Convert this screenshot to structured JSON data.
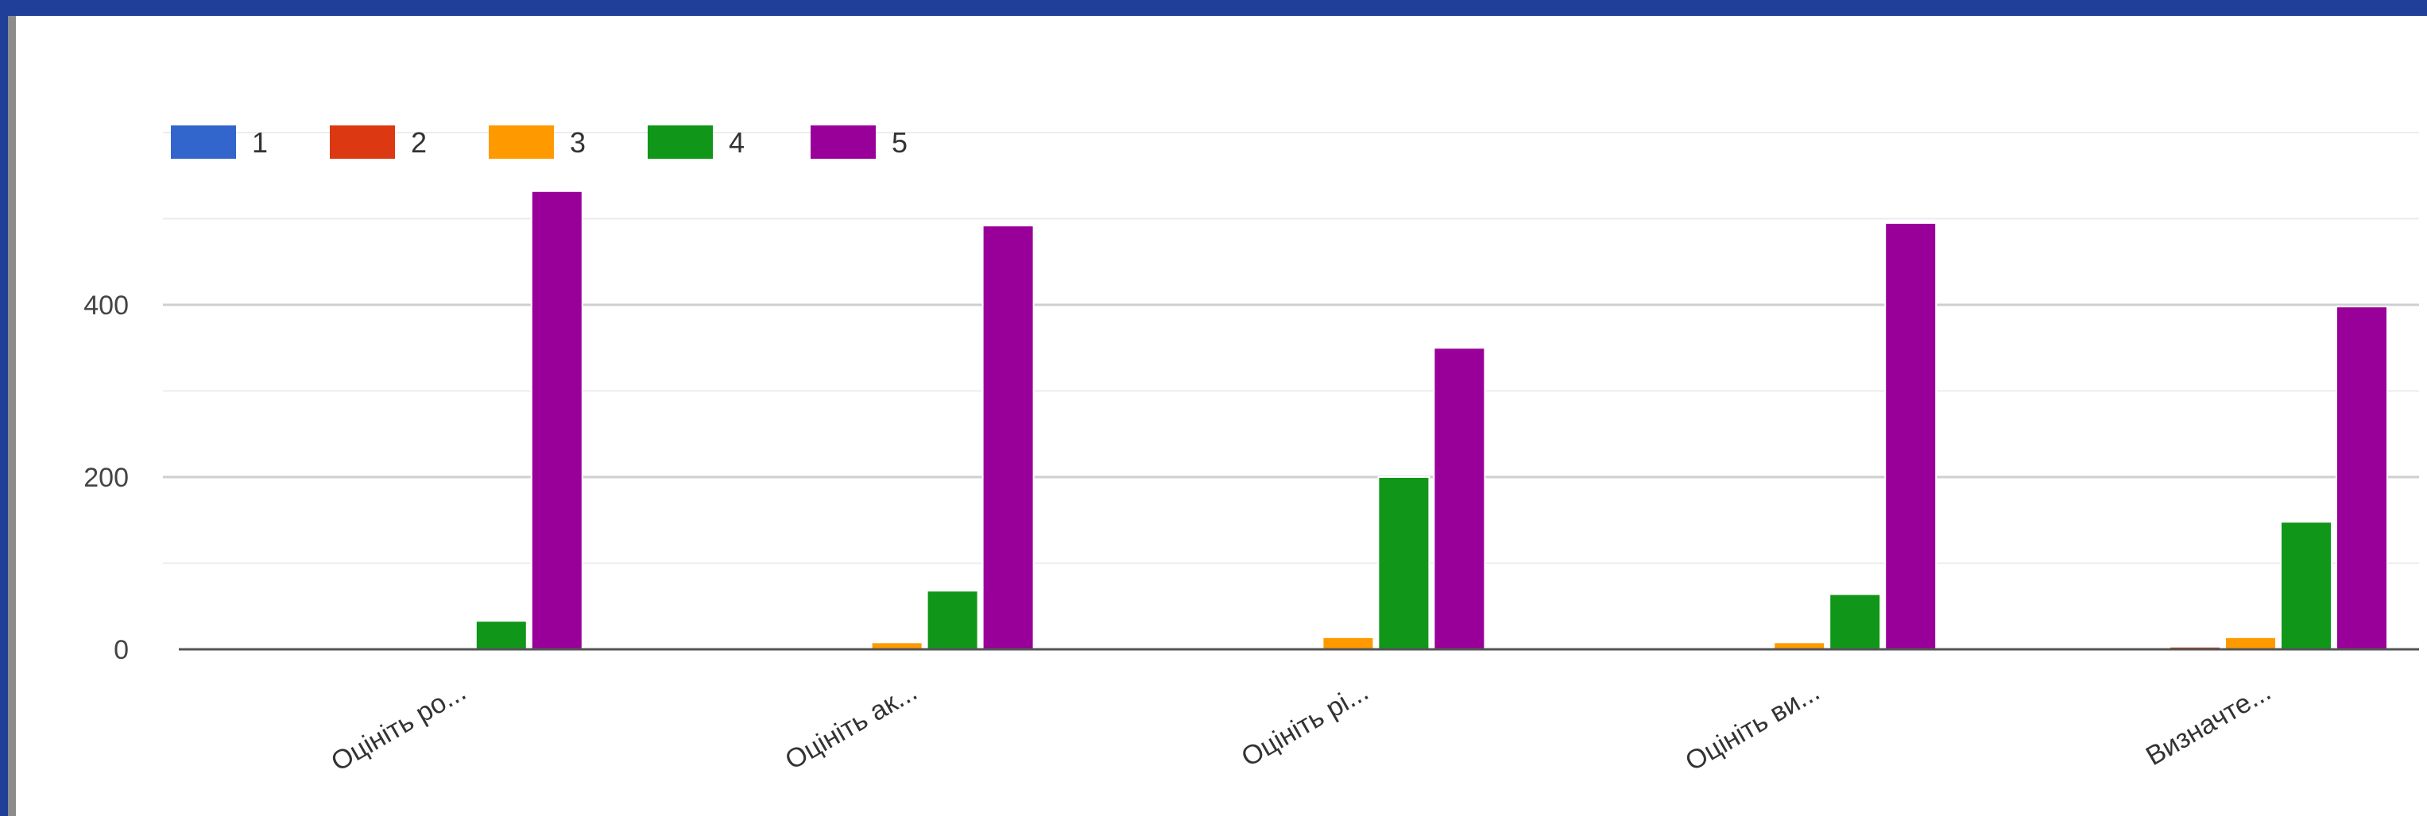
{
  "chart_data": {
    "type": "bar",
    "title": "",
    "xlabel": "",
    "ylabel": "",
    "categories": [
      "Оцініть ро...",
      "Оцініть ак...",
      "Оцініть рі...",
      "Оцініть ви...",
      "Визначте..."
    ],
    "series": [
      {
        "name": "1",
        "color": "#3366cc",
        "values": [
          0,
          0,
          0,
          0,
          0
        ]
      },
      {
        "name": "2",
        "color": "#dc3912",
        "values": [
          0,
          0,
          0,
          0,
          3
        ]
      },
      {
        "name": "3",
        "color": "#ff9900",
        "values": [
          0,
          8,
          14,
          8,
          14
        ]
      },
      {
        "name": "4",
        "color": "#109618",
        "values": [
          33,
          68,
          200,
          64,
          148
        ]
      },
      {
        "name": "5",
        "color": "#990099",
        "values": [
          532,
          492,
          350,
          495,
          398
        ]
      }
    ],
    "ylim": [
      0,
      600
    ],
    "yticks": [
      0,
      200,
      400
    ],
    "grid": true,
    "legend": "top-left"
  }
}
